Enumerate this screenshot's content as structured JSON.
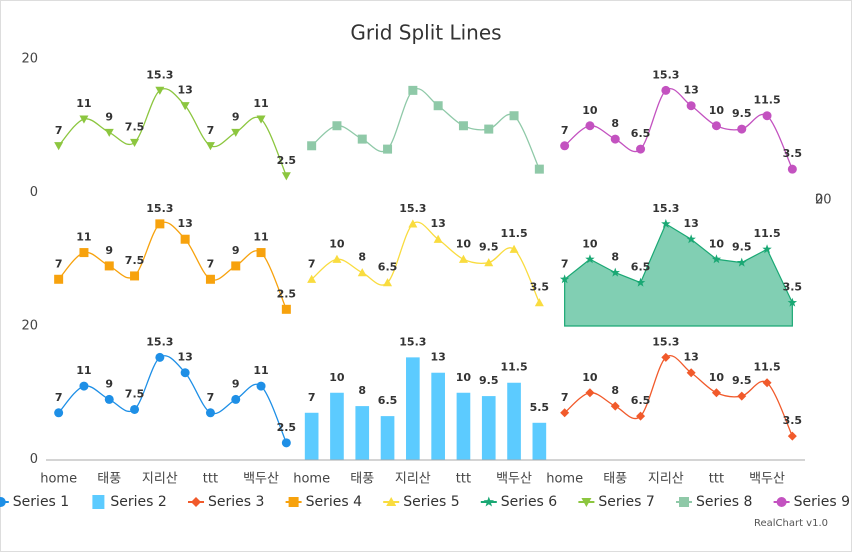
{
  "chart_data": {
    "type": "line",
    "title": "Grid Split Lines",
    "categories": [
      "home",
      null,
      "태풍",
      null,
      "지리산",
      null,
      "ttt",
      null,
      "백두산",
      null
    ],
    "ylim": [
      0,
      20
    ],
    "yticks": [
      0,
      20
    ],
    "series": [
      {
        "name": "Series 1",
        "color": "#1e8fe6",
        "marker": "circle",
        "values": [
          7,
          11,
          9,
          7.5,
          15.3,
          13,
          7,
          9,
          11,
          2.5
        ]
      },
      {
        "name": "Series 2",
        "color": "#5ccbff",
        "type": "bar",
        "values": [
          7,
          10,
          8,
          6.5,
          15.3,
          13,
          10,
          9.5,
          11.5,
          5.5
        ]
      },
      {
        "name": "Series 3",
        "color": "#f15a2b",
        "marker": "diamond",
        "values": [
          7,
          10,
          8,
          6.5,
          15.3,
          13,
          10,
          9.5,
          11.5,
          3.5
        ]
      },
      {
        "name": "Series 4",
        "color": "#f7a20d",
        "marker": "square",
        "values": [
          7,
          11,
          9,
          7.5,
          15.3,
          13,
          7,
          9,
          11,
          2.5
        ]
      },
      {
        "name": "Series 5",
        "color": "#f9dc3f",
        "marker": "triangle",
        "values": [
          7,
          10,
          8,
          6.5,
          15.3,
          13,
          10,
          9.5,
          11.5,
          3.5
        ]
      },
      {
        "name": "Series 6",
        "color": "#1aa874",
        "type": "area",
        "marker": "star",
        "values": [
          7,
          10,
          8,
          6.5,
          15.3,
          13,
          10,
          9.5,
          11.5,
          3.5
        ]
      },
      {
        "name": "Series 7",
        "color": "#8cc63f",
        "marker": "triangle-down",
        "values": [
          7,
          11,
          9,
          7.5,
          15.3,
          13,
          7,
          9,
          11,
          2.5
        ]
      },
      {
        "name": "Series 8",
        "color": "#8fc9a8",
        "marker": "square",
        "labels": false,
        "values": [
          7,
          10,
          8,
          6.5,
          15.3,
          13,
          10,
          9.5,
          11.5,
          3.5
        ]
      },
      {
        "name": "Series 9",
        "color": "#c352c0",
        "marker": "circle",
        "values": [
          7,
          10,
          8,
          6.5,
          15.3,
          13,
          10,
          9.5,
          11.5,
          3.5
        ]
      }
    ],
    "credit": "RealChart v1.0"
  }
}
